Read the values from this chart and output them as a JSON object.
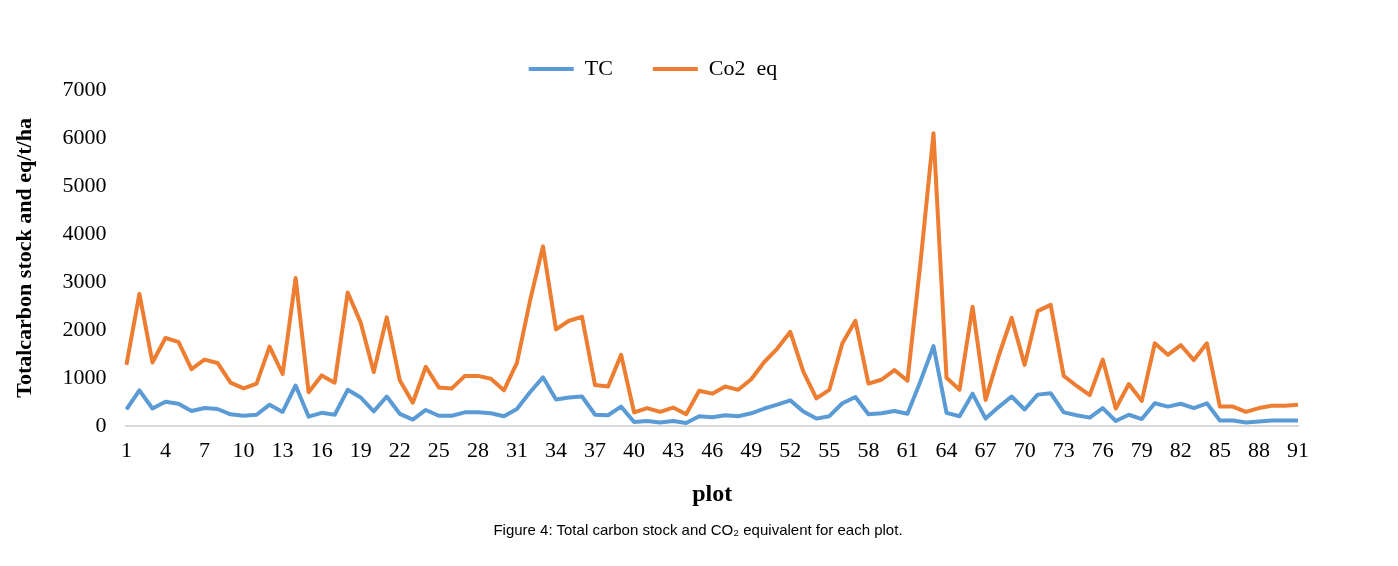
{
  "chart_data": {
    "type": "line",
    "title": "Figure 4: Total carbon stock and CO₂ equivalent for each plot.",
    "xlabel": "plot",
    "ylabel": "Totalcarbon stock and eq/t/ha",
    "categories": [
      "1",
      null,
      null,
      "4",
      null,
      null,
      "7",
      null,
      null,
      "10",
      null,
      null,
      "13",
      null,
      null,
      "16",
      null,
      null,
      "19",
      null,
      null,
      "22",
      null,
      null,
      "25",
      null,
      null,
      "28",
      null,
      null,
      "31",
      null,
      null,
      "34",
      null,
      null,
      "37",
      null,
      null,
      "40",
      null,
      null,
      "43",
      null,
      null,
      "46",
      null,
      null,
      "49",
      null,
      null,
      "52",
      null,
      null,
      "55",
      null,
      null,
      "58",
      null,
      null,
      "61",
      null,
      null,
      "64",
      null,
      null,
      "67",
      null,
      null,
      "70",
      null,
      null,
      "73",
      null,
      null,
      "76",
      null,
      null,
      "79",
      null,
      null,
      "82",
      null,
      null,
      "85",
      null,
      null,
      "88",
      null,
      null,
      "91"
    ],
    "series": [
      {
        "name": "TC",
        "color": "#5b9bd5",
        "values": [
          340,
          740,
          360,
          500,
          460,
          310,
          370,
          350,
          240,
          210,
          230,
          440,
          290,
          840,
          190,
          270,
          230,
          750,
          590,
          300,
          610,
          250,
          130,
          330,
          210,
          210,
          280,
          280,
          260,
          200,
          350,
          700,
          1010,
          550,
          590,
          610,
          230,
          220,
          400,
          80,
          100,
          70,
          100,
          60,
          200,
          180,
          220,
          200,
          260,
          360,
          440,
          530,
          300,
          150,
          200,
          470,
          600,
          240,
          260,
          310,
          250,
          930,
          1660,
          270,
          200,
          670,
          150,
          390,
          610,
          340,
          650,
          680,
          280,
          220,
          170,
          370,
          100,
          230,
          140,
          470,
          400,
          460,
          370,
          470,
          110,
          110,
          70,
          90,
          110,
          110,
          110
        ]
      },
      {
        "name": "Co2  eq",
        "color": "#ed7d31",
        "values": [
          1270,
          2750,
          1320,
          1830,
          1750,
          1180,
          1380,
          1310,
          900,
          780,
          880,
          1650,
          1080,
          3080,
          700,
          1050,
          900,
          2780,
          2150,
          1120,
          2260,
          950,
          480,
          1230,
          800,
          780,
          1040,
          1040,
          980,
          740,
          1310,
          2600,
          3740,
          2010,
          2190,
          2270,
          850,
          820,
          1480,
          280,
          370,
          290,
          380,
          240,
          730,
          670,
          820,
          750,
          970,
          1330,
          1610,
          1960,
          1130,
          570,
          750,
          1720,
          2190,
          880,
          960,
          1160,
          940,
          3400,
          6100,
          1000,
          750,
          2480,
          540,
          1450,
          2250,
          1270,
          2390,
          2520,
          1040,
          830,
          640,
          1380,
          360,
          870,
          520,
          1720,
          1480,
          1680,
          1370,
          1720,
          400,
          400,
          290,
          370,
          420,
          420,
          440
        ]
      }
    ],
    "ylim": [
      0,
      7000
    ],
    "yticks": [
      0,
      1000,
      2000,
      3000,
      4000,
      5000,
      6000,
      7000
    ],
    "grid": false,
    "legend": "top",
    "marker": "none",
    "line_style": "solid"
  }
}
